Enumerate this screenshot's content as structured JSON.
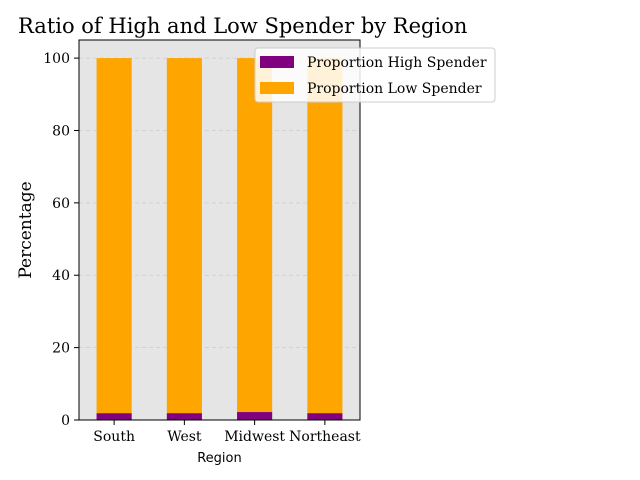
{
  "chart_data": {
    "type": "bar",
    "stacked": true,
    "title": "Ratio of High and Low Spender by Region",
    "xlabel": "Region",
    "ylabel": "Percentage",
    "categories": [
      "South",
      "West",
      "Midwest",
      "Northeast"
    ],
    "series": [
      {
        "name": "Proportion High Spender",
        "values": [
          1.9,
          1.9,
          2.2,
          1.9
        ]
      },
      {
        "name": "Proportion Low Spender",
        "values": [
          98.1,
          98.1,
          97.8,
          98.1
        ]
      }
    ],
    "ylim": [
      0,
      105
    ],
    "yticks": [
      0,
      20,
      40,
      60,
      80,
      100
    ],
    "grid": true,
    "legend": "top-right",
    "colors": {
      "series": [
        "#800080",
        "#ffa500"
      ],
      "plot_background": "#e5e5e5"
    }
  }
}
